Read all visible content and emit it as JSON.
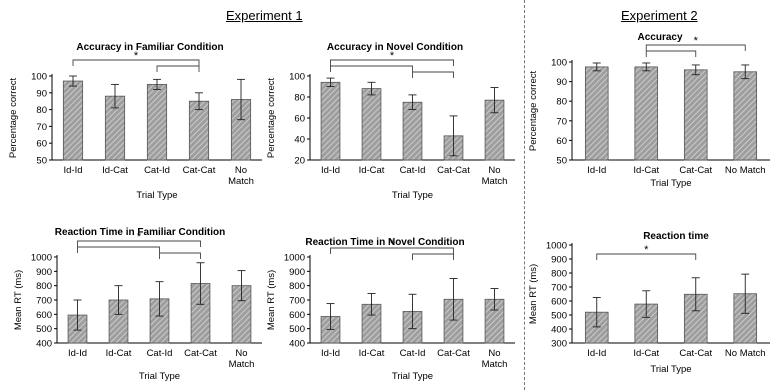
{
  "headers": {
    "experiment1": "Experiment 1",
    "experiment2": "Experiment 2"
  },
  "colors": {
    "bar_fill": "#9e9e9e",
    "bar_hatch": "#d6d6d6",
    "axis": "#000000",
    "divider": "#777777"
  },
  "chart_data": [
    {
      "type": "bar",
      "id": "acc-familiar",
      "title": "Accuracy in Familiar Condition",
      "xlabel": "Trial Type",
      "ylabel": "Percentage correct",
      "categories": [
        "Id-Id",
        "Id-Cat",
        "Cat-Id",
        "Cat-Cat",
        "No\nMatch"
      ],
      "values": [
        97,
        88,
        95,
        85,
        86
      ],
      "errors": [
        3,
        7,
        3,
        5,
        12
      ],
      "ylim": [
        50,
        100
      ],
      "yticks": [
        50,
        60,
        70,
        80,
        90,
        100
      ],
      "significance": [
        {
          "from": 0,
          "to": 3,
          "label": "*"
        },
        {
          "from": 2,
          "to": 3,
          "label": ""
        }
      ]
    },
    {
      "type": "bar",
      "id": "acc-novel",
      "title": "Accuracy in Novel Condition",
      "xlabel": "Trial Type",
      "ylabel": "Percentage correct",
      "categories": [
        "Id-Id",
        "Id-Cat",
        "Cat-Id",
        "Cat-Cat",
        "No\nMatch"
      ],
      "values": [
        94,
        88,
        75,
        43,
        77
      ],
      "errors": [
        4,
        6,
        7,
        19,
        12
      ],
      "ylim": [
        20,
        100
      ],
      "yticks": [
        20,
        40,
        60,
        80,
        100
      ],
      "significance": [
        {
          "from": 0,
          "to": 3,
          "label": "*"
        },
        {
          "from": 0,
          "to": 2,
          "label": ""
        },
        {
          "from": 2,
          "to": 3,
          "label": ""
        }
      ]
    },
    {
      "type": "bar",
      "id": "acc-exp2",
      "title": "Accuracy",
      "xlabel": "Trial Type",
      "ylabel": "Percentage correct",
      "categories": [
        "Id-Id",
        "Id-Cat",
        "Cat-Cat",
        "No Match"
      ],
      "values": [
        97.5,
        97.5,
        96,
        95
      ],
      "errors": [
        2,
        2,
        2.5,
        3.5
      ],
      "ylim": [
        50,
        100
      ],
      "yticks": [
        50,
        60,
        70,
        80,
        90,
        100
      ],
      "significance": [
        {
          "from": 1,
          "to": 3,
          "label": "*"
        },
        {
          "from": 1,
          "to": 2,
          "label": ""
        }
      ]
    },
    {
      "type": "bar",
      "id": "rt-familiar",
      "title": "Reaction Time in Familiar Condition",
      "xlabel": "Trial Type",
      "ylabel": "Mean RT (ms)",
      "categories": [
        "Id-Id",
        "Id-Cat",
        "Cat-Id",
        "Cat-Cat",
        "No\nMatch"
      ],
      "values": [
        595,
        700,
        708,
        815,
        800
      ],
      "errors": [
        105,
        100,
        120,
        145,
        105
      ],
      "ylim": [
        400,
        1000
      ],
      "yticks": [
        400,
        500,
        600,
        700,
        800,
        900,
        1000
      ],
      "significance": [
        {
          "from": 0,
          "to": 3,
          "label": "*"
        },
        {
          "from": 0,
          "to": 2,
          "label": ""
        },
        {
          "from": 2,
          "to": 3,
          "label": ""
        }
      ]
    },
    {
      "type": "bar",
      "id": "rt-novel",
      "title": "Reaction Time in Novel Condition",
      "xlabel": "Trial Type",
      "ylabel": "Mean RT (ms)",
      "categories": [
        "Id-Id",
        "Id-Cat",
        "Cat-Id",
        "Cat-Cat",
        "No\nMatch"
      ],
      "values": [
        585,
        670,
        620,
        705,
        705
      ],
      "errors": [
        90,
        75,
        120,
        145,
        75
      ],
      "ylim": [
        400,
        1000
      ],
      "yticks": [
        400,
        500,
        600,
        700,
        800,
        900,
        1000
      ],
      "significance": [
        {
          "from": 0,
          "to": 3,
          "label": "*"
        },
        {
          "from": 2,
          "to": 3,
          "label": ""
        }
      ]
    },
    {
      "type": "bar",
      "id": "rt-exp2",
      "title": "Reaction time",
      "xlabel": "Trial Type",
      "ylabel": "Mean RT (ms)",
      "categories": [
        "Id-Id",
        "Id-Cat",
        "Cat-Cat",
        "No Match"
      ],
      "values": [
        520,
        578,
        648,
        652
      ],
      "errors": [
        105,
        95,
        118,
        140
      ],
      "ylim": [
        300,
        1000
      ],
      "yticks": [
        300,
        400,
        500,
        600,
        700,
        800,
        900,
        1000
      ],
      "significance": [
        {
          "from": 0,
          "to": 2,
          "label": "*"
        }
      ]
    }
  ]
}
